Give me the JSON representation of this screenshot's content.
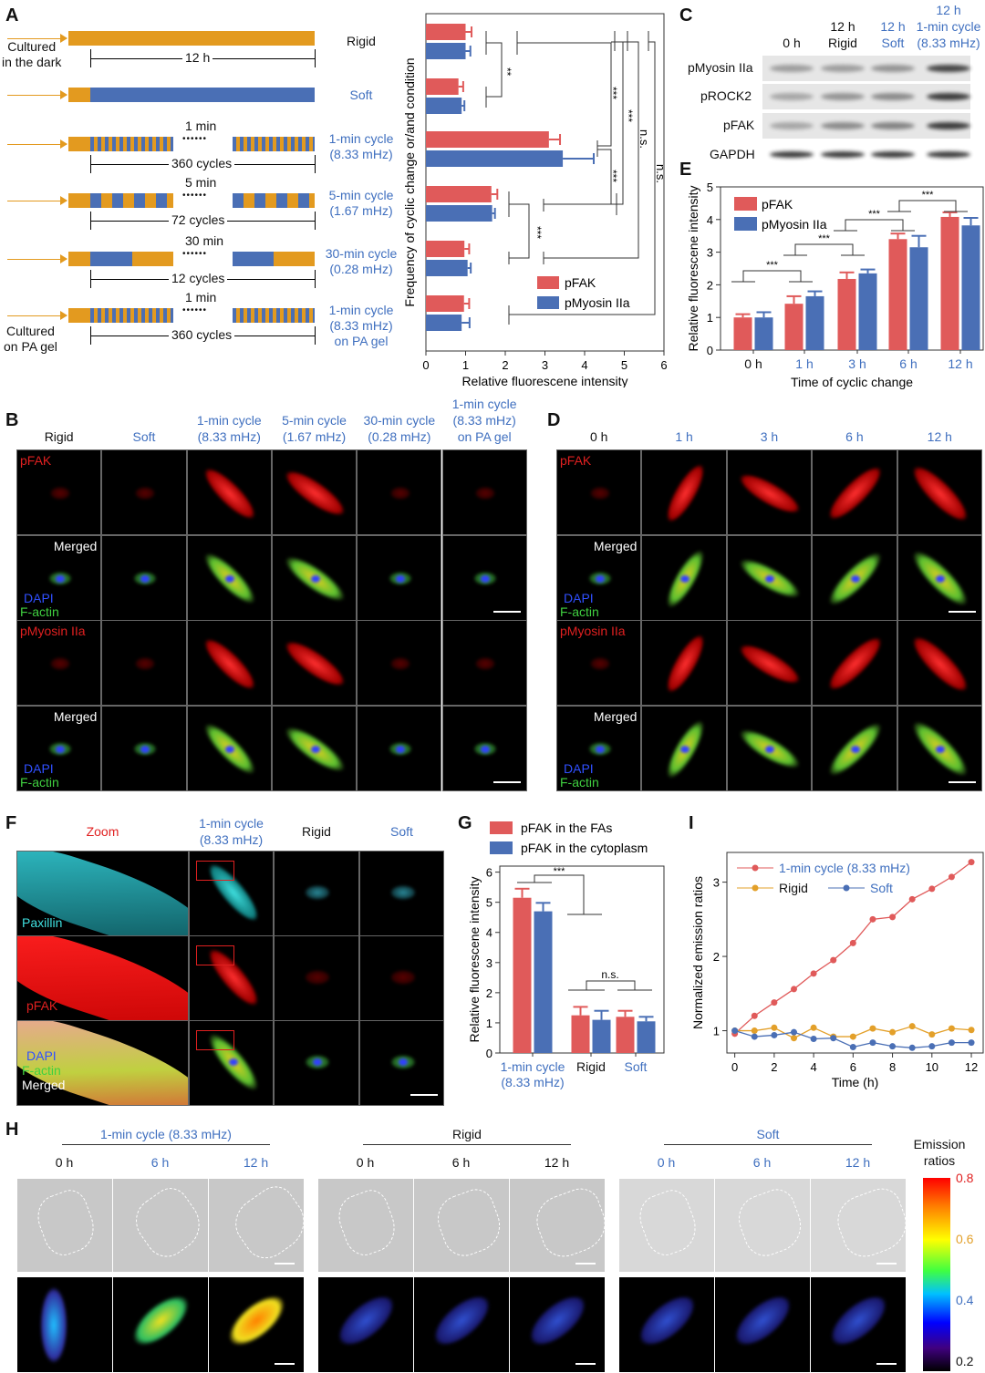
{
  "panel_letters": {
    "A": "A",
    "B": "B",
    "C": "C",
    "D": "D",
    "E": "E",
    "F": "F",
    "G": "G",
    "H": "H",
    "I": "I"
  },
  "panelA": {
    "cultured_dark": "Cultured\nin the dark",
    "cultured_pa": "Cultured\non PA gel",
    "dots": "••••••",
    "rows": [
      {
        "label": "Rigid",
        "duration": "12 h"
      },
      {
        "label": "Soft"
      },
      {
        "label": "1-min cycle\n(8.33 mHz)",
        "period": "1 min",
        "cycles": "360 cycles"
      },
      {
        "label": "5-min cycle\n(1.67 mHz)",
        "period": "5 min",
        "cycles": "72 cycles"
      },
      {
        "label": "30-min cycle\n(0.28 mHz)",
        "period": "30 min",
        "cycles": "12 cycles"
      },
      {
        "label": "1-min cycle\n(8.33 mHz)\non PA gel",
        "period": "1 min",
        "cycles": "360 cycles"
      }
    ]
  },
  "panelC": {
    "columns": [
      "0 h",
      "12 h\nRigid",
      "12 h\nSoft",
      "12 h\n1-min cycle\n(8.33 mHz)"
    ],
    "rows": [
      "pMyosin IIa",
      "pROCK2",
      "pFAK",
      "GAPDH"
    ]
  },
  "panelB": {
    "columns": [
      "Rigid",
      "Soft",
      "1-min cycle\n(8.33 mHz)",
      "5-min cycle\n(1.67 mHz)",
      "30-min cycle\n(0.28 mHz)",
      "1-min cycle\n(8.33 mHz)\non PA gel"
    ],
    "row_labels": {
      "pfak": "pFAK",
      "merged": "Merged",
      "dapi": "DAPI",
      "factin": "F-actin",
      "pmyosin": "pMyosin IIa"
    }
  },
  "panelD": {
    "columns": [
      "0 h",
      "1 h",
      "3 h",
      "6 h",
      "12 h"
    ],
    "row_labels": {
      "pfak": "pFAK",
      "merged": "Merged",
      "dapi": "DAPI",
      "factin": "F-actin",
      "pmyosin": "pMyosin IIa"
    }
  },
  "panelF": {
    "columns": [
      "Zoom",
      "1-min cycle\n(8.33 mHz)",
      "Rigid",
      "Soft"
    ],
    "row_labels": {
      "paxillin": "Paxillin",
      "pfak": "pFAK",
      "dapi": "DAPI",
      "factin": "F-actin",
      "merged": "Merged"
    }
  },
  "panelH": {
    "groups": [
      {
        "title": "1-min cycle (8.33 mHz)",
        "times": [
          "0 h",
          "6 h",
          "12 h"
        ]
      },
      {
        "title": "Rigid",
        "times": [
          "0 h",
          "6 h",
          "12 h"
        ]
      },
      {
        "title": "Soft",
        "times": [
          "0 h",
          "6 h",
          "12 h"
        ]
      }
    ],
    "colorbar": {
      "title": "Emission\nratios",
      "ticks": [
        "0.8",
        "0.6",
        "0.4",
        "0.2"
      ]
    }
  },
  "colors": {
    "red": "#e05a5a",
    "blue": "#4a6fb5",
    "orange": "#e3a02a",
    "accent_text": "#3f6fbf"
  },
  "chart_data": [
    {
      "id": "A",
      "type": "bar",
      "orientation": "horizontal",
      "categories": [
        "Rigid",
        "Soft",
        "1-min cycle",
        "5-min cycle",
        "30-min cycle",
        "1-min cycle on PA gel"
      ],
      "series": [
        {
          "name": "pFAK",
          "values": [
            1.0,
            0.82,
            3.1,
            1.65,
            0.97,
            0.96
          ],
          "errors": [
            0.15,
            0.12,
            0.28,
            0.15,
            0.12,
            0.13
          ]
        },
        {
          "name": "pMyosin IIa",
          "values": [
            1.0,
            0.9,
            3.45,
            1.67,
            1.05,
            0.9
          ],
          "errors": [
            0.12,
            0.07,
            0.78,
            0.07,
            0.08,
            0.2
          ]
        }
      ],
      "xlabel": "Relative fluorescene intensity",
      "ylabel": "Frequency of cyclic change or/and condition",
      "xlim": [
        0,
        6
      ],
      "xticks": [
        "0",
        "1",
        "2",
        "3",
        "4",
        "5",
        "6"
      ],
      "legend": "bottom-right",
      "annotations": [
        "**",
        "***",
        "***",
        "n.s.",
        "***",
        "n.s.",
        "***"
      ]
    },
    {
      "id": "E",
      "type": "bar",
      "categories": [
        "0 h",
        "1 h",
        "3 h",
        "6 h",
        "12 h"
      ],
      "series": [
        {
          "name": "pFAK",
          "values": [
            1.0,
            1.42,
            2.18,
            3.4,
            4.08
          ],
          "errors": [
            0.1,
            0.23,
            0.2,
            0.17,
            0.14
          ]
        },
        {
          "name": "pMyosin IIa",
          "values": [
            1.0,
            1.65,
            2.35,
            3.15,
            3.82
          ],
          "errors": [
            0.16,
            0.15,
            0.12,
            0.35,
            0.23
          ]
        }
      ],
      "xlabel": "Time of cyclic change",
      "ylabel": "Relative fluorescene intensity",
      "ylim": [
        0,
        5
      ],
      "yticks": [
        "0",
        "1",
        "2",
        "3",
        "4",
        "5"
      ],
      "legend": "top-left",
      "annotations": [
        "***",
        "***",
        "***",
        "***"
      ]
    },
    {
      "id": "G",
      "type": "bar",
      "categories": [
        "1-min cycle\n(8.33 mHz)",
        "Rigid",
        "Soft"
      ],
      "series": [
        {
          "name": "pFAK in the FAs",
          "values": [
            5.15,
            1.25,
            1.2
          ],
          "errors": [
            0.3,
            0.28,
            0.2
          ]
        },
        {
          "name": "pFAK in the cytoplasm",
          "values": [
            4.7,
            1.1,
            1.05
          ],
          "errors": [
            0.28,
            0.3,
            0.15
          ]
        }
      ],
      "ylabel": "Relative fluorescene intensity",
      "ylim": [
        0,
        6.2
      ],
      "yticks": [
        "0",
        "1",
        "2",
        "3",
        "4",
        "5",
        "6"
      ],
      "legend": "top",
      "annotations": [
        "***",
        "n.s."
      ]
    },
    {
      "id": "I",
      "type": "line",
      "x": [
        0,
        1,
        2,
        3,
        4,
        5,
        6,
        7,
        8,
        9,
        10,
        11,
        12
      ],
      "series": [
        {
          "name": "1-min cycle (8.33 mHz)",
          "values": [
            0.96,
            1.2,
            1.38,
            1.56,
            1.77,
            1.95,
            2.18,
            2.5,
            2.53,
            2.77,
            2.91,
            3.07,
            3.27
          ]
        },
        {
          "name": "Rigid",
          "values": [
            1.0,
            1.0,
            1.04,
            0.9,
            1.04,
            0.92,
            0.92,
            1.03,
            0.98,
            1.06,
            0.95,
            1.03,
            1.01
          ]
        },
        {
          "name": "Soft",
          "values": [
            1.0,
            0.92,
            0.94,
            0.98,
            0.89,
            0.9,
            0.78,
            0.84,
            0.79,
            0.77,
            0.79,
            0.84,
            0.84
          ]
        }
      ],
      "xlabel": "Time (h)",
      "ylabel": "Normalized emission ratios",
      "xlim": [
        -0.4,
        12.6
      ],
      "ylim": [
        0.7,
        3.4
      ],
      "xticks": [
        "0",
        "2",
        "4",
        "6",
        "8",
        "10",
        "12"
      ],
      "yticks": [
        "1",
        "2",
        "3"
      ],
      "legend": "top-left"
    }
  ]
}
